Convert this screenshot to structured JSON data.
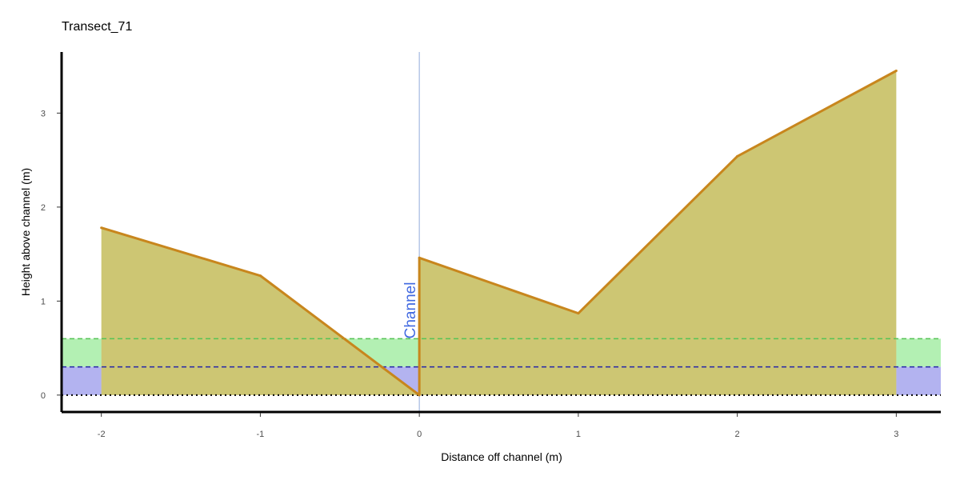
{
  "chart_data": {
    "type": "area",
    "title": "Transect_71",
    "xlabel": "Distance off channel (m)",
    "ylabel": "Height above channel (m)",
    "xlim": [
      -2.25,
      3.28
    ],
    "ylim": [
      -0.18,
      3.65
    ],
    "x_ticks": [
      -2,
      -1,
      0,
      1,
      2,
      3
    ],
    "x_tick_labels": [
      "-2",
      "-1",
      "0",
      "1",
      "2",
      "3"
    ],
    "y_ticks": [
      0,
      1,
      2,
      3
    ],
    "y_tick_labels": [
      "0",
      "1",
      "2",
      "3"
    ],
    "grid": false,
    "profile": {
      "x": [
        -2,
        -1,
        0,
        0,
        1,
        2,
        3
      ],
      "y": [
        1.78,
        1.27,
        0.0,
        1.46,
        0.87,
        2.54,
        3.45
      ]
    },
    "bands": [
      {
        "y0": 0.3,
        "y1": 0.6,
        "color": "#b3f0b3"
      },
      {
        "y0": 0.0,
        "y1": 0.3,
        "color": "#b3b3f0"
      }
    ],
    "reference_lines": [
      {
        "y": 0.6,
        "style": "dashed",
        "color": "#55c455"
      },
      {
        "y": 0.3,
        "style": "dashed",
        "color": "#2424a8"
      },
      {
        "y": 0.0,
        "style": "dotted",
        "color": "#000000"
      }
    ],
    "channel_line": {
      "x": 0,
      "color": "#a3b8e0"
    },
    "annotations": [
      {
        "text": "Channel",
        "x": 0,
        "y": 0.6,
        "color": "#4169e1",
        "rotation": -90
      }
    ],
    "colors": {
      "fill": "#cdc673",
      "line": "#c8861d"
    }
  }
}
